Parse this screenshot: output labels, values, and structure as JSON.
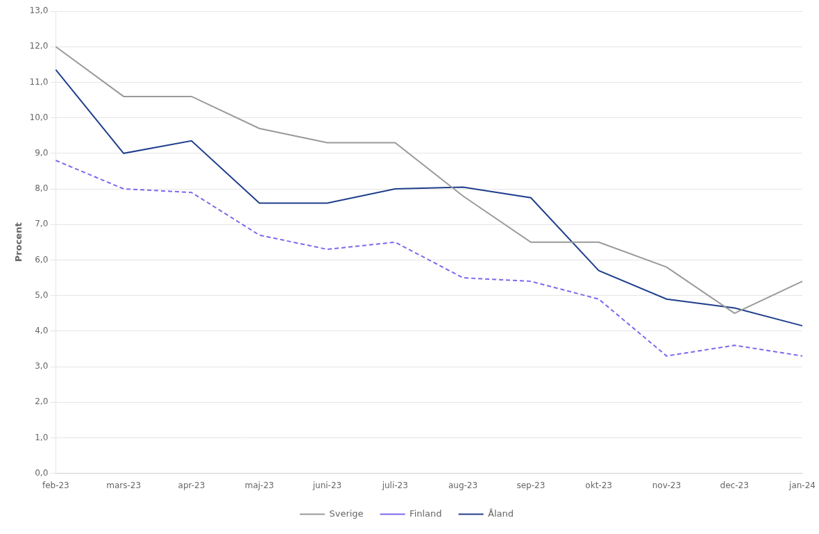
{
  "chart_data": {
    "type": "line",
    "ylabel": "Procent",
    "categories": [
      "feb-23",
      "mars-23",
      "apr-23",
      "maj-23",
      "juni-23",
      "juli-23",
      "aug-23",
      "sep-23",
      "okt-23",
      "nov-23",
      "dec-23",
      "jan-24"
    ],
    "series": [
      {
        "name": "Sverige",
        "color": "#999999",
        "line_style": "solid",
        "values": [
          12.0,
          10.6,
          10.6,
          9.7,
          9.3,
          9.3,
          7.8,
          6.5,
          6.5,
          5.8,
          4.5,
          5.4
        ]
      },
      {
        "name": "Finland",
        "color": "#7B68EE",
        "line_style": "dashed",
        "values": [
          8.8,
          8.0,
          7.9,
          6.7,
          6.3,
          6.5,
          5.5,
          5.4,
          4.9,
          3.3,
          3.6,
          3.3
        ]
      },
      {
        "name": "Åland",
        "color": "#1f3e8c",
        "line_style": "solid",
        "values": [
          11.35,
          9.0,
          9.35,
          7.6,
          7.6,
          8.0,
          8.05,
          7.75,
          5.7,
          4.9,
          4.65,
          4.15
        ]
      }
    ],
    "ylim": [
      0,
      13
    ],
    "yticks": [
      {
        "value": 0,
        "label": "0,0"
      },
      {
        "value": 1,
        "label": "1,0"
      },
      {
        "value": 2,
        "label": "2,0"
      },
      {
        "value": 3,
        "label": "3,0"
      },
      {
        "value": 4,
        "label": "4,0"
      },
      {
        "value": 5,
        "label": "5,0"
      },
      {
        "value": 6,
        "label": "6,0"
      },
      {
        "value": 7,
        "label": "7,0"
      },
      {
        "value": 8,
        "label": "8,0"
      },
      {
        "value": 9,
        "label": "9,0"
      },
      {
        "value": 10,
        "label": "10,0"
      },
      {
        "value": 11,
        "label": "11,0"
      },
      {
        "value": 12,
        "label": "12,0"
      },
      {
        "value": 13,
        "label": "13,0"
      }
    ],
    "grid": "y",
    "legend": "bottom"
  }
}
